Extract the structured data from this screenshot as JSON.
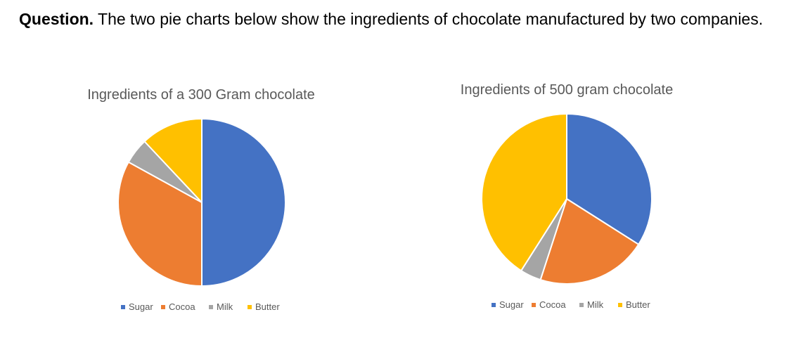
{
  "question": {
    "lead": "Question.",
    "text": " The two pie charts below show the ingredients of chocolate manufactured by two companies."
  },
  "colors": {
    "Sugar": "#4472C4",
    "Cocoa": "#ED7D31",
    "Milk": "#A5A5A5",
    "Butter": "#FFC000"
  },
  "chart_data": [
    {
      "type": "pie",
      "title": "Ingredients of a 300 Gram chocolate",
      "categories": [
        "Sugar",
        "Cocoa",
        "Milk",
        "Butter"
      ],
      "values": [
        50,
        33,
        5,
        12
      ],
      "legend": "bottom"
    },
    {
      "type": "pie",
      "title": "Ingredients of 500 gram chocolate",
      "categories": [
        "Sugar",
        "Cocoa",
        "Milk",
        "Butter"
      ],
      "values": [
        34,
        21,
        4,
        41
      ],
      "legend": "bottom"
    }
  ]
}
